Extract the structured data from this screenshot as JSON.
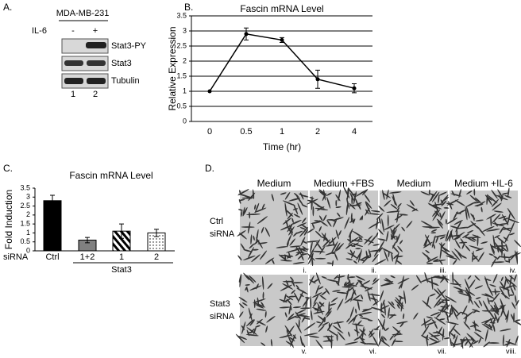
{
  "panel_a": {
    "label": "A.",
    "cell_line": "MDA-MB-231",
    "treatment": "IL-6",
    "lanes": [
      "-",
      "+"
    ],
    "bands": [
      "Stat3-PY",
      "Stat3",
      "Tubulin"
    ],
    "lane_numbers": [
      "1",
      "2"
    ]
  },
  "panel_b": {
    "label": "B."
  },
  "panel_c": {
    "label": "C.",
    "row_label": "siRNA",
    "group_label": "Stat3"
  },
  "chart_data": [
    {
      "type": "line",
      "title": "Fascin mRNA Level",
      "ylabel": "Relative Expression",
      "xlabel": "Time (hr)",
      "categories": [
        "0",
        "0.5",
        "1",
        "2",
        "4"
      ],
      "series": [
        {
          "color": "#000000",
          "values": [
            1,
            2.9,
            2.7,
            1.4,
            1.1
          ],
          "errors": [
            0,
            0.2,
            0.08,
            0.3,
            0.15
          ]
        }
      ],
      "ylim": [
        0,
        3.5
      ],
      "yticks": [
        0,
        0.5,
        1,
        1.5,
        2,
        2.5,
        3,
        3.5
      ],
      "grid": true
    },
    {
      "type": "bar",
      "title": "Fascin mRNA Level",
      "ylabel": "Fold Induction",
      "categories": [
        "Ctrl",
        "1+2",
        "1",
        "2"
      ],
      "values": [
        2.8,
        0.6,
        1.1,
        1.0
      ],
      "errors": [
        0.3,
        0.15,
        0.4,
        0.2
      ],
      "colors": [
        "#000000",
        "#808080",
        "#000000",
        "#000000"
      ],
      "patterns": [
        "solid",
        "solid",
        "diagonal",
        "dotted"
      ],
      "ylim": [
        0,
        3.5
      ],
      "yticks": [
        0,
        0.5,
        1,
        1.5,
        2,
        2.5,
        3,
        3.5
      ],
      "grid": false
    }
  ],
  "panel_d": {
    "label": "D.",
    "columns": [
      "Medium",
      "Medium +FBS",
      "Medium",
      "Medium +IL-6"
    ],
    "rows": [
      [
        "Ctrl",
        "siRNA"
      ],
      [
        "Stat3",
        "siRNA"
      ]
    ],
    "numerals": [
      "i.",
      "ii.",
      "iii.",
      "iv.",
      "v.",
      "vi.",
      "vii.",
      "viii."
    ]
  }
}
